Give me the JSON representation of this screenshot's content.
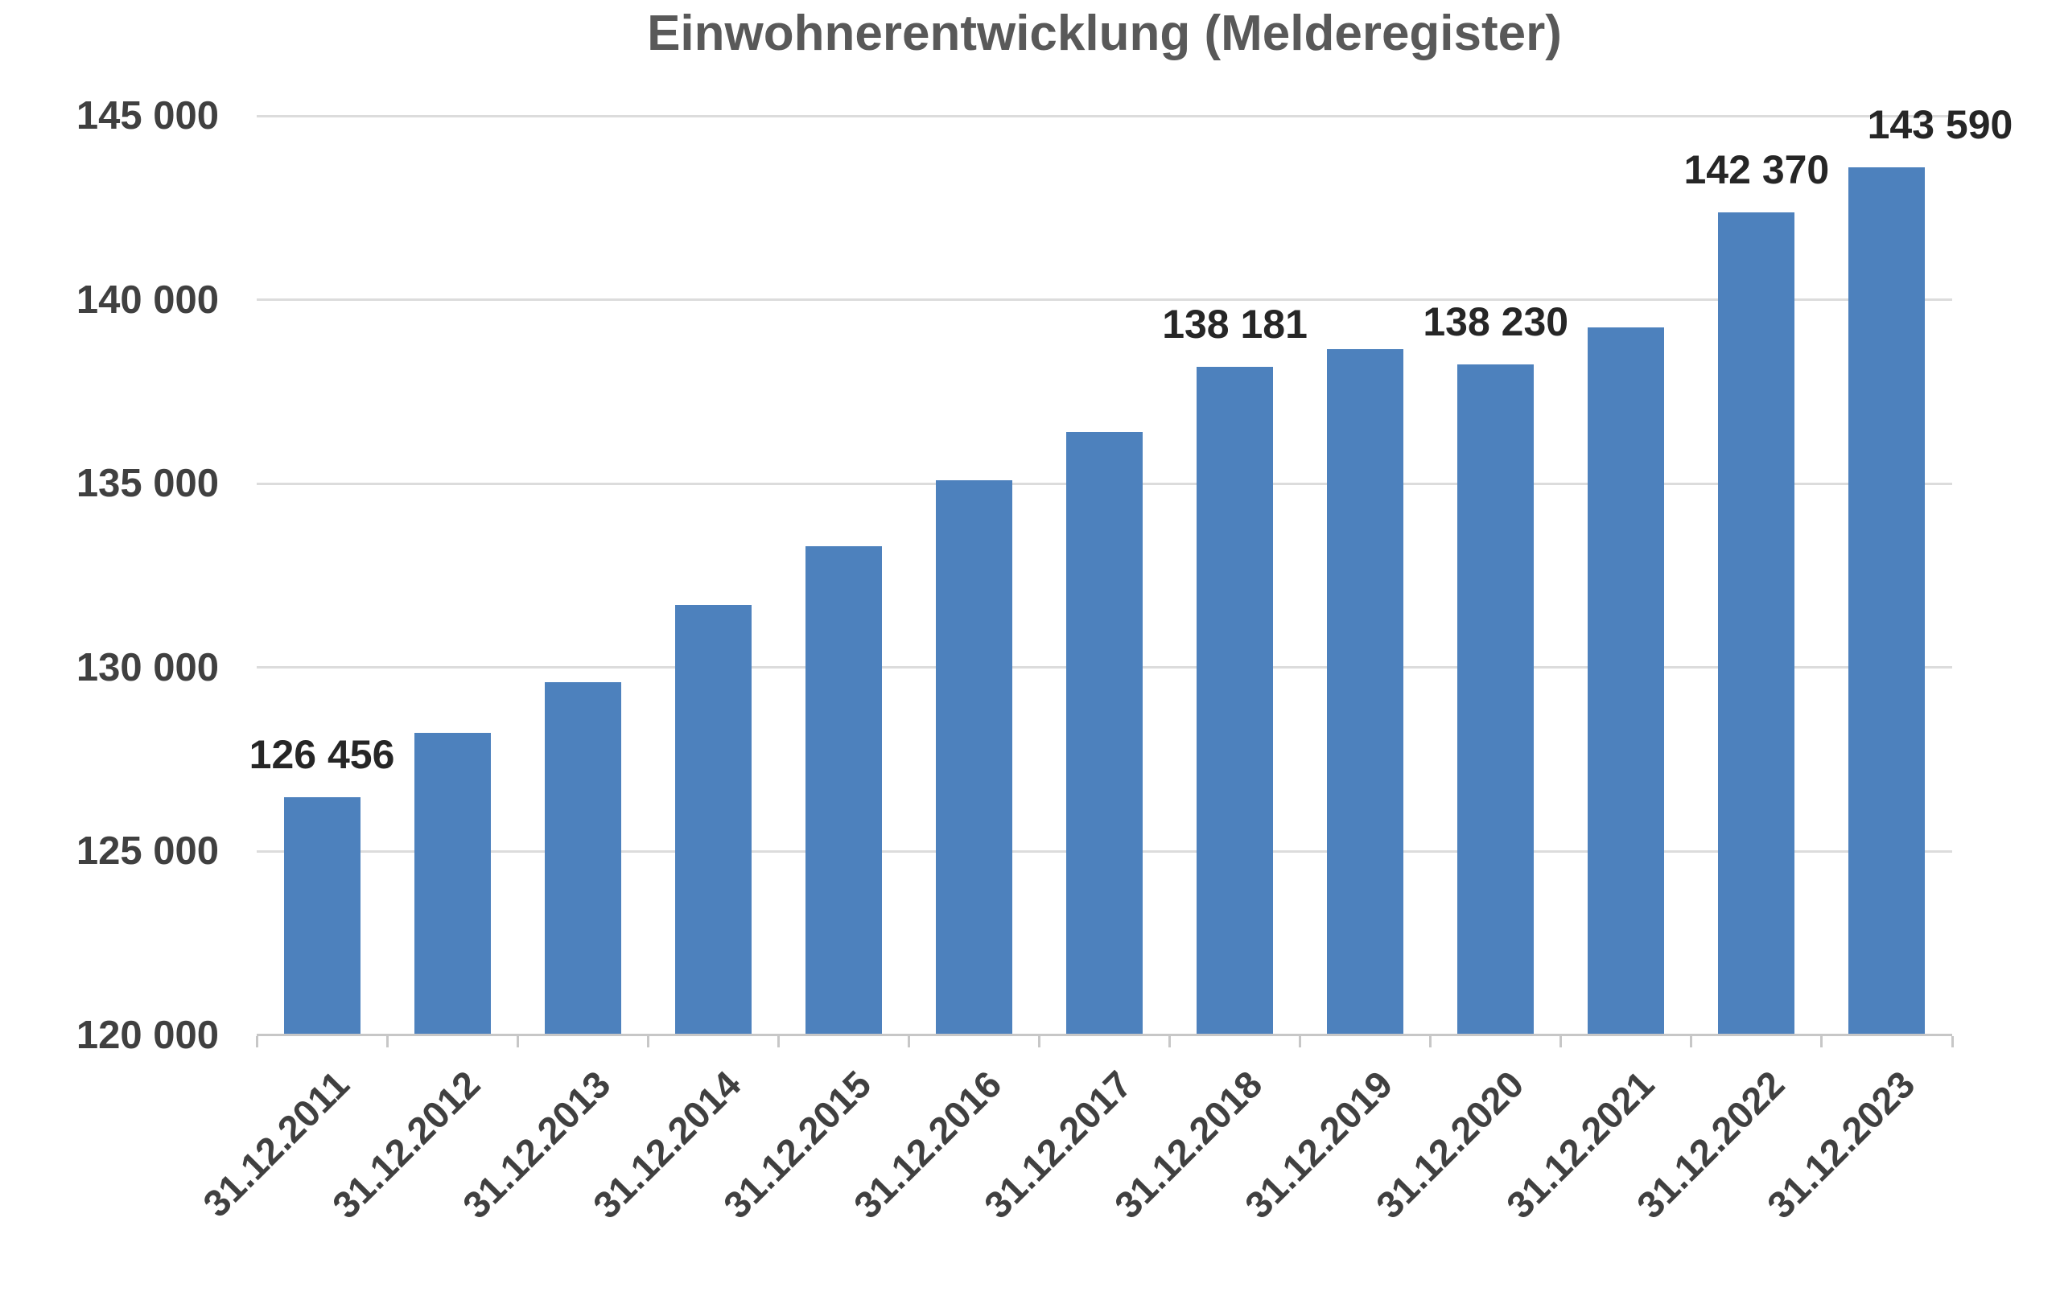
{
  "chart_data": {
    "type": "bar",
    "title": "Einwohnerentwicklung (Melderegister)",
    "categories": [
      "31.12.2011",
      "31.12.2012",
      "31.12.2013",
      "31.12.2014",
      "31.12.2015",
      "31.12.2016",
      "31.12.2017",
      "31.12.2018",
      "31.12.2019",
      "31.12.2020",
      "31.12.2021",
      "31.12.2022",
      "31.12.2023"
    ],
    "values": [
      126456,
      128220,
      129600,
      131700,
      133300,
      135090,
      136400,
      138181,
      138650,
      138230,
      139250,
      142370,
      143590
    ],
    "bar_labels": [
      "126 456",
      "",
      "",
      "",
      "",
      "",
      "",
      "138 181",
      "",
      "138 230",
      "",
      "142 370",
      "143 590"
    ],
    "xlabel": "",
    "ylabel": "",
    "ylim": [
      120000,
      145000
    ],
    "y_ticks": [
      {
        "value": 120000,
        "label": "120 000"
      },
      {
        "value": 125000,
        "label": "125 000"
      },
      {
        "value": 130000,
        "label": "130 000"
      },
      {
        "value": 135000,
        "label": "135 000"
      },
      {
        "value": 140000,
        "label": "140 000"
      },
      {
        "value": 145000,
        "label": "145 000"
      }
    ],
    "grid": true,
    "legend": false,
    "x_tick_rotation": 45,
    "colors": {
      "bar": "#4d81bd",
      "title": "#595959",
      "axis_label_text": "#404040",
      "bar_label_text": "#262626",
      "gridline": "#dcdcdc",
      "axis_line": "#c7c7c7",
      "background": "#ffffff"
    },
    "layout_hints": {
      "legend_position": "none",
      "last_bar_label_dx": 66
    }
  }
}
